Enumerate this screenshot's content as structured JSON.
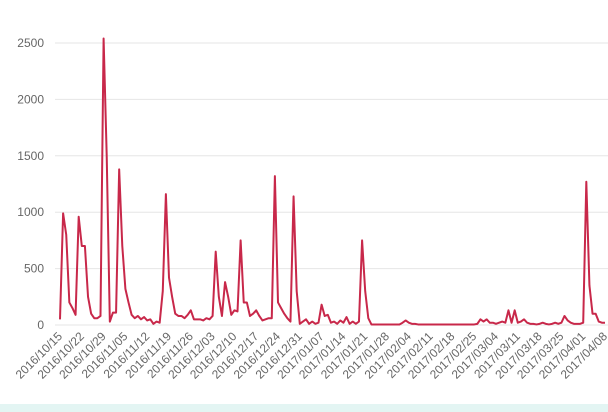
{
  "chart_data": {
    "type": "line",
    "categories": [
      "2016/10/15",
      null,
      null,
      null,
      null,
      null,
      null,
      "2016/10/22",
      null,
      null,
      null,
      null,
      null,
      null,
      "2016/10/29",
      null,
      null,
      null,
      null,
      null,
      null,
      "2016/11/05",
      null,
      null,
      null,
      null,
      null,
      null,
      "2016/11/12",
      null,
      null,
      null,
      null,
      null,
      null,
      "2016/11/19",
      null,
      null,
      null,
      null,
      null,
      null,
      "2016/11/26",
      null,
      null,
      null,
      null,
      null,
      null,
      "2016/12/03",
      null,
      null,
      null,
      null,
      null,
      null,
      "2016/12/10",
      null,
      null,
      null,
      null,
      null,
      null,
      "2016/12/17",
      null,
      null,
      null,
      null,
      null,
      null,
      "2016/12/24",
      null,
      null,
      null,
      null,
      null,
      null,
      "2016/12/31",
      null,
      null,
      null,
      null,
      null,
      null,
      "2017/01/07",
      null,
      null,
      null,
      null,
      null,
      null,
      "2017/01/14",
      null,
      null,
      null,
      null,
      null,
      null,
      "2017/01/21",
      null,
      null,
      null,
      null,
      null,
      null,
      "2017/01/28",
      null,
      null,
      null,
      null,
      null,
      null,
      "2017/02/04",
      null,
      null,
      null,
      null,
      null,
      null,
      "2017/02/11",
      null,
      null,
      null,
      null,
      null,
      null,
      "2017/02/18",
      null,
      null,
      null,
      null,
      null,
      null,
      "2017/02/25",
      null,
      null,
      null,
      null,
      null,
      null,
      "2017/03/04",
      null,
      null,
      null,
      null,
      null,
      null,
      "2017/03/11",
      null,
      null,
      null,
      null,
      null,
      null,
      "2017/03/18",
      null,
      null,
      null,
      null,
      null,
      null,
      "2017/03/25",
      null,
      null,
      null,
      null,
      null,
      null,
      "2017/04/01",
      null,
      null,
      null,
      null,
      null,
      null,
      "2017/04/08"
    ],
    "values": [
      50,
      990,
      800,
      200,
      150,
      90,
      960,
      700,
      700,
      250,
      100,
      60,
      60,
      80,
      2540,
      1500,
      30,
      110,
      110,
      1380,
      700,
      320,
      200,
      90,
      60,
      80,
      50,
      70,
      40,
      50,
      10,
      30,
      20,
      300,
      1160,
      420,
      250,
      100,
      80,
      80,
      60,
      90,
      130,
      50,
      50,
      50,
      40,
      60,
      50,
      80,
      650,
      250,
      80,
      380,
      250,
      90,
      130,
      120,
      750,
      200,
      200,
      80,
      100,
      130,
      80,
      40,
      50,
      60,
      60,
      1320,
      200,
      150,
      100,
      60,
      30,
      1140,
      300,
      10,
      30,
      50,
      10,
      30,
      10,
      20,
      180,
      80,
      90,
      20,
      30,
      10,
      40,
      20,
      70,
      10,
      30,
      10,
      30,
      750,
      300,
      60,
      5,
      5,
      5,
      5,
      5,
      5,
      5,
      5,
      5,
      5,
      20,
      40,
      20,
      10,
      10,
      5,
      5,
      5,
      5,
      5,
      5,
      5,
      5,
      5,
      5,
      5,
      5,
      5,
      5,
      5,
      5,
      5,
      5,
      5,
      10,
      50,
      30,
      50,
      20,
      20,
      10,
      20,
      30,
      20,
      130,
      20,
      130,
      20,
      30,
      50,
      20,
      10,
      10,
      5,
      10,
      20,
      10,
      5,
      10,
      20,
      10,
      20,
      80,
      40,
      20,
      10,
      10,
      10,
      20,
      1270,
      350,
      100,
      100,
      30,
      20,
      20
    ],
    "color": "#c8284a",
    "ylim": [
      0,
      2600
    ],
    "yticks": [
      0,
      500,
      1000,
      1500,
      2000,
      2500
    ],
    "grid": true
  }
}
